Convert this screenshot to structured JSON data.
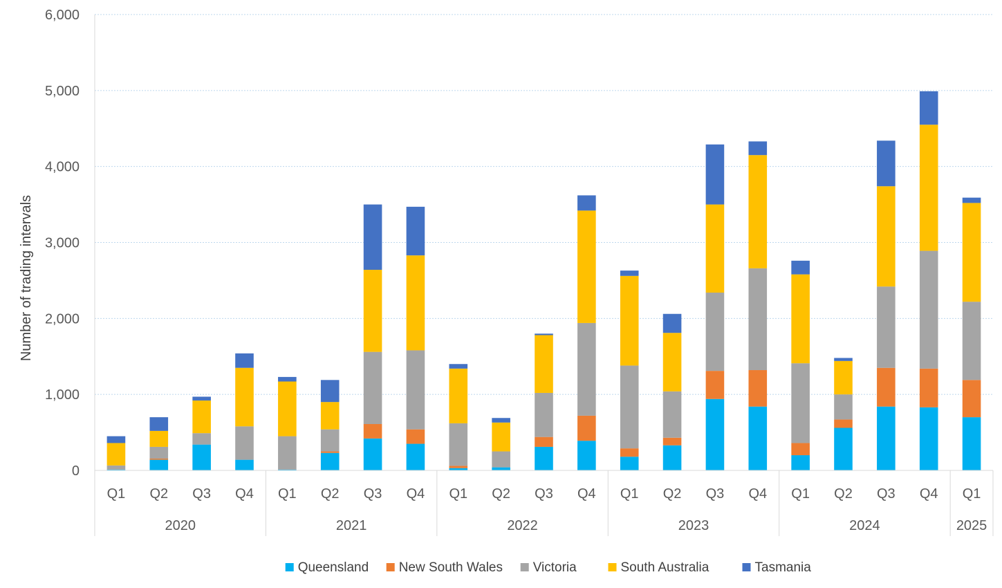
{
  "chart_data": {
    "type": "bar",
    "stacked": true,
    "title": "",
    "xlabel": "",
    "ylabel": "Number of trading intervals",
    "ylim": [
      0,
      6000
    ],
    "yticks": [
      "0",
      "1,000",
      "2,000",
      "3,000",
      "4,000",
      "5,000",
      "6,000"
    ],
    "ytick_values": [
      0,
      1000,
      2000,
      3000,
      4000,
      5000,
      6000
    ],
    "grid": true,
    "legend_position": "bottom",
    "years": [
      {
        "label": "2020",
        "quarters": [
          "Q1",
          "Q2",
          "Q3",
          "Q4"
        ]
      },
      {
        "label": "2021",
        "quarters": [
          "Q1",
          "Q2",
          "Q3",
          "Q4"
        ]
      },
      {
        "label": "2022",
        "quarters": [
          "Q1",
          "Q2",
          "Q3",
          "Q4"
        ]
      },
      {
        "label": "2023",
        "quarters": [
          "Q1",
          "Q2",
          "Q3",
          "Q4"
        ]
      },
      {
        "label": "2024",
        "quarters": [
          "Q1",
          "Q2",
          "Q3",
          "Q4"
        ]
      },
      {
        "label": "2025",
        "quarters": [
          "Q1"
        ]
      }
    ],
    "series": [
      {
        "name": "Queensland",
        "color": "#00b0f0",
        "values": [
          10,
          140,
          340,
          140,
          10,
          230,
          420,
          350,
          30,
          40,
          310,
          390,
          180,
          330,
          940,
          840,
          200,
          560,
          840,
          830,
          700
        ]
      },
      {
        "name": "New South Wales",
        "color": "#ed7d31",
        "values": [
          0,
          15,
          0,
          0,
          0,
          20,
          190,
          190,
          30,
          0,
          130,
          330,
          110,
          100,
          370,
          480,
          160,
          110,
          510,
          510,
          490
        ]
      },
      {
        "name": "Victoria",
        "color": "#a5a5a5",
        "values": [
          55,
          155,
          150,
          440,
          440,
          290,
          950,
          1040,
          560,
          210,
          580,
          1220,
          1090,
          610,
          1030,
          1340,
          1050,
          330,
          1070,
          1550,
          1030
        ]
      },
      {
        "name": "South Australia",
        "color": "#ffc000",
        "values": [
          295,
          210,
          430,
          770,
          720,
          360,
          1080,
          1250,
          720,
          380,
          760,
          1480,
          1180,
          770,
          1160,
          1490,
          1170,
          440,
          1320,
          1660,
          1300
        ]
      },
      {
        "name": "Tasmania",
        "color": "#4472c4",
        "values": [
          90,
          180,
          50,
          190,
          60,
          290,
          860,
          640,
          60,
          60,
          20,
          200,
          70,
          250,
          790,
          180,
          180,
          40,
          600,
          440,
          70
        ]
      }
    ]
  }
}
